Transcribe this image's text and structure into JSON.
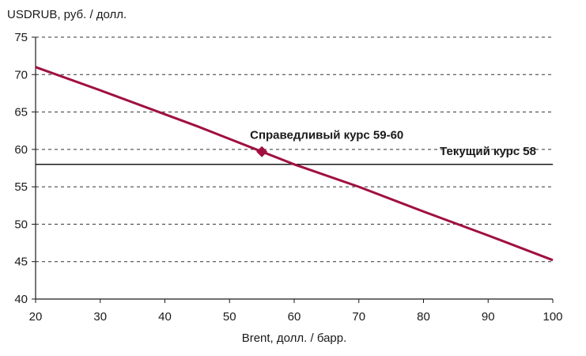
{
  "chart_data": {
    "type": "line",
    "ylabel": "USDRUB, руб. / долл.",
    "xlabel": "Brent, долл. / барр.",
    "xlim": [
      20,
      100
    ],
    "ylim": [
      40,
      75
    ],
    "x_ticks": [
      20,
      30,
      40,
      50,
      60,
      70,
      80,
      90,
      100
    ],
    "y_ticks": [
      40,
      45,
      50,
      55,
      60,
      65,
      70,
      75
    ],
    "grid": "horizontal dashed",
    "series": [
      {
        "color": "#a0103f",
        "x": [
          20,
          30,
          40,
          45,
          50,
          55,
          60,
          70,
          80,
          90,
          100
        ],
        "y": [
          71,
          67.9,
          64.7,
          63.1,
          61.4,
          59.7,
          58,
          55,
          51.7,
          48.5,
          45.2
        ]
      }
    ],
    "reference_line": {
      "y": 58,
      "label": "Текущий курс 58",
      "color": "#1a1a1a"
    },
    "marker": {
      "x": 55,
      "y": 59.7,
      "label": "Справедливый курс 59-60",
      "color": "#a0103f"
    }
  }
}
